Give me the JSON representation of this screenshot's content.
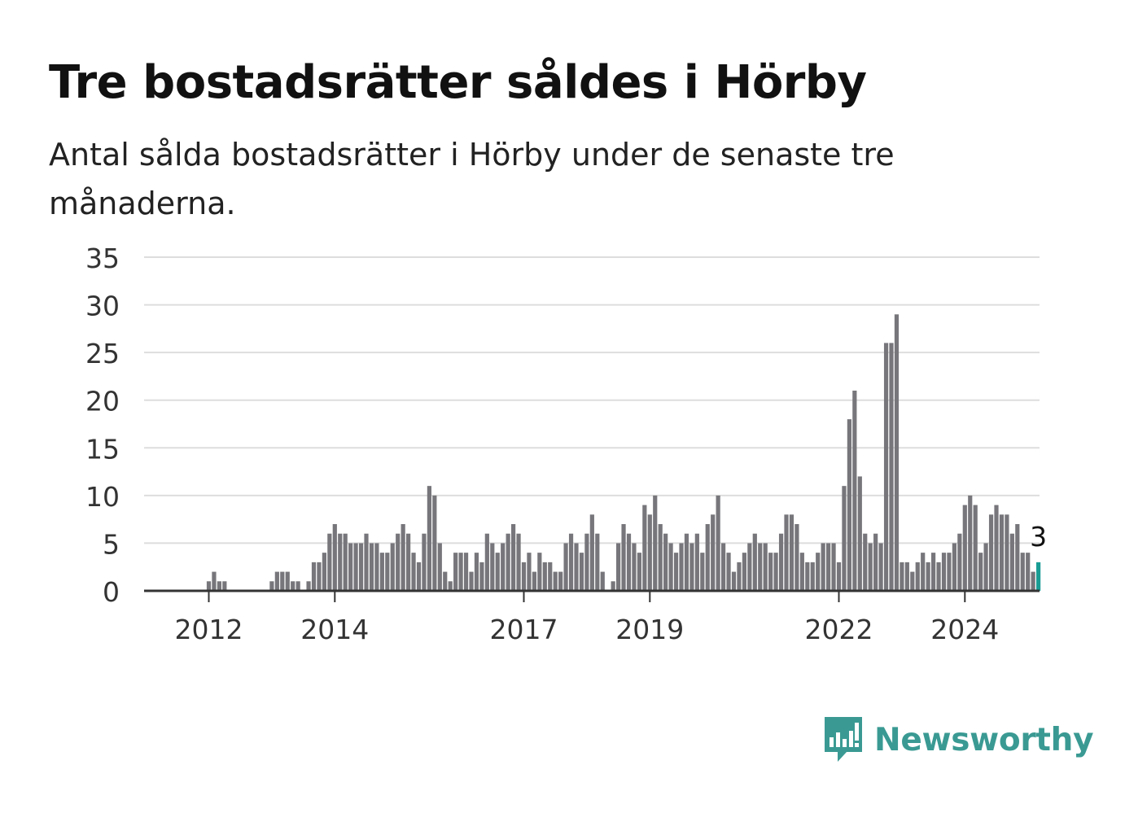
{
  "title": "Tre bostadsrätter såldes i Hörby",
  "subtitle": "Antal sålda bostadsrätter i Hörby under de senaste tre månaderna.",
  "brand": {
    "name": "Newsworthy",
    "icon": "newsworthy-logo-icon",
    "color": "#3a9a93"
  },
  "colors": {
    "bar": "#77767b",
    "highlight": "#1a9c94",
    "grid": "#dddddd",
    "axis": "#333333"
  },
  "chart_data": {
    "type": "bar",
    "x_start": "2011-01",
    "y_ticks": [
      0,
      5,
      10,
      15,
      20,
      25,
      30,
      35
    ],
    "ylim": [
      0,
      35
    ],
    "grid": true,
    "x_tick_labels": [
      {
        "label": "2012",
        "index": 12
      },
      {
        "label": "2014",
        "index": 36
      },
      {
        "label": "2017",
        "index": 72
      },
      {
        "label": "2019",
        "index": 96
      },
      {
        "label": "2022",
        "index": 132
      },
      {
        "label": "2024",
        "index": 156
      }
    ],
    "values": [
      0,
      0,
      0,
      0,
      0,
      0,
      0,
      0,
      0,
      0,
      0,
      0,
      1,
      2,
      1,
      1,
      0,
      0,
      0,
      0,
      0,
      0,
      0,
      0,
      1,
      2,
      2,
      2,
      1,
      1,
      0,
      1,
      3,
      3,
      4,
      6,
      7,
      6,
      6,
      5,
      5,
      5,
      6,
      5,
      5,
      4,
      4,
      5,
      6,
      7,
      6,
      4,
      3,
      6,
      11,
      10,
      5,
      2,
      1,
      4,
      4,
      4,
      2,
      4,
      3,
      6,
      5,
      4,
      5,
      6,
      7,
      6,
      3,
      4,
      2,
      4,
      3,
      3,
      2,
      2,
      5,
      6,
      5,
      4,
      6,
      8,
      6,
      2,
      0,
      1,
      5,
      7,
      6,
      5,
      4,
      9,
      8,
      10,
      7,
      6,
      5,
      4,
      5,
      6,
      5,
      6,
      4,
      7,
      8,
      10,
      5,
      4,
      2,
      3,
      4,
      5,
      6,
      5,
      5,
      4,
      4,
      6,
      8,
      8,
      7,
      4,
      3,
      3,
      4,
      5,
      5,
      5,
      3,
      11,
      18,
      21,
      12,
      6,
      5,
      6,
      5,
      26,
      26,
      29,
      3,
      3,
      2,
      3,
      4,
      3,
      4,
      3,
      4,
      4,
      5,
      6,
      9,
      10,
      9,
      4,
      5,
      8,
      9,
      8,
      8,
      6,
      7,
      4,
      4,
      2,
      3
    ],
    "highlight": {
      "index": 170,
      "label": "3"
    }
  }
}
